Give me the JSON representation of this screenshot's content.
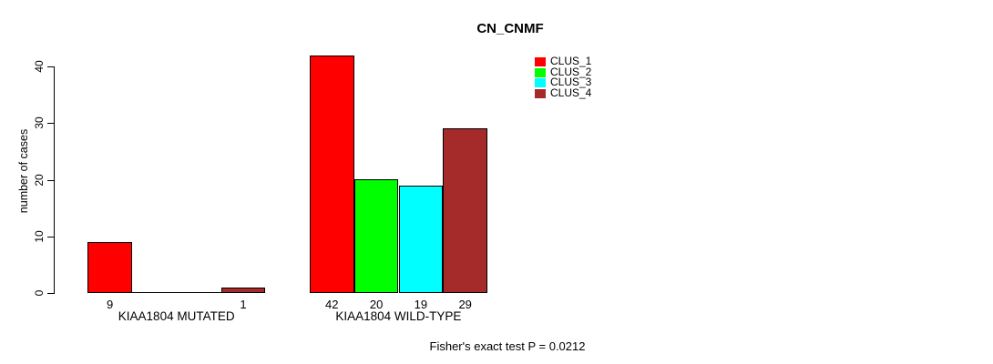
{
  "chart_data": {
    "type": "bar",
    "title": "CN_CNMF",
    "ylabel": "number of cases",
    "xlabel": "",
    "categories": [
      "KIAA1804 MUTATED",
      "KIAA1804 WILD-TYPE"
    ],
    "series": [
      {
        "name": "CLUS_1",
        "color": "#ff0000",
        "values": [
          9,
          42
        ]
      },
      {
        "name": "CLUS_2",
        "color": "#00ff00",
        "values": [
          0,
          20
        ]
      },
      {
        "name": "CLUS_3",
        "color": "#00ffff",
        "values": [
          0,
          19
        ]
      },
      {
        "name": "CLUS_4",
        "color": "#a52a2a",
        "values": [
          1,
          29
        ]
      }
    ],
    "bar_value_labels": [
      [
        "9",
        "",
        "",
        "1"
      ],
      [
        "42",
        "20",
        "19",
        "29"
      ]
    ],
    "yticks": [
      "0",
      "10",
      "20",
      "30",
      "40"
    ],
    "ytick_values": [
      0,
      10,
      20,
      30,
      40
    ],
    "ylim": [
      0,
      42
    ],
    "grid": false,
    "legend_position": "top-right",
    "legend_entries": [
      "CLUS_1",
      "CLUS_2",
      "CLUS_3",
      "CLUS_4"
    ],
    "legend_colors": [
      "#ff0000",
      "#00ff00",
      "#00ffff",
      "#a52a2a"
    ],
    "annotation": "Fisher's exact test P = 0.0212",
    "axis_color": "#000000",
    "bar_border_color": "#000000"
  }
}
